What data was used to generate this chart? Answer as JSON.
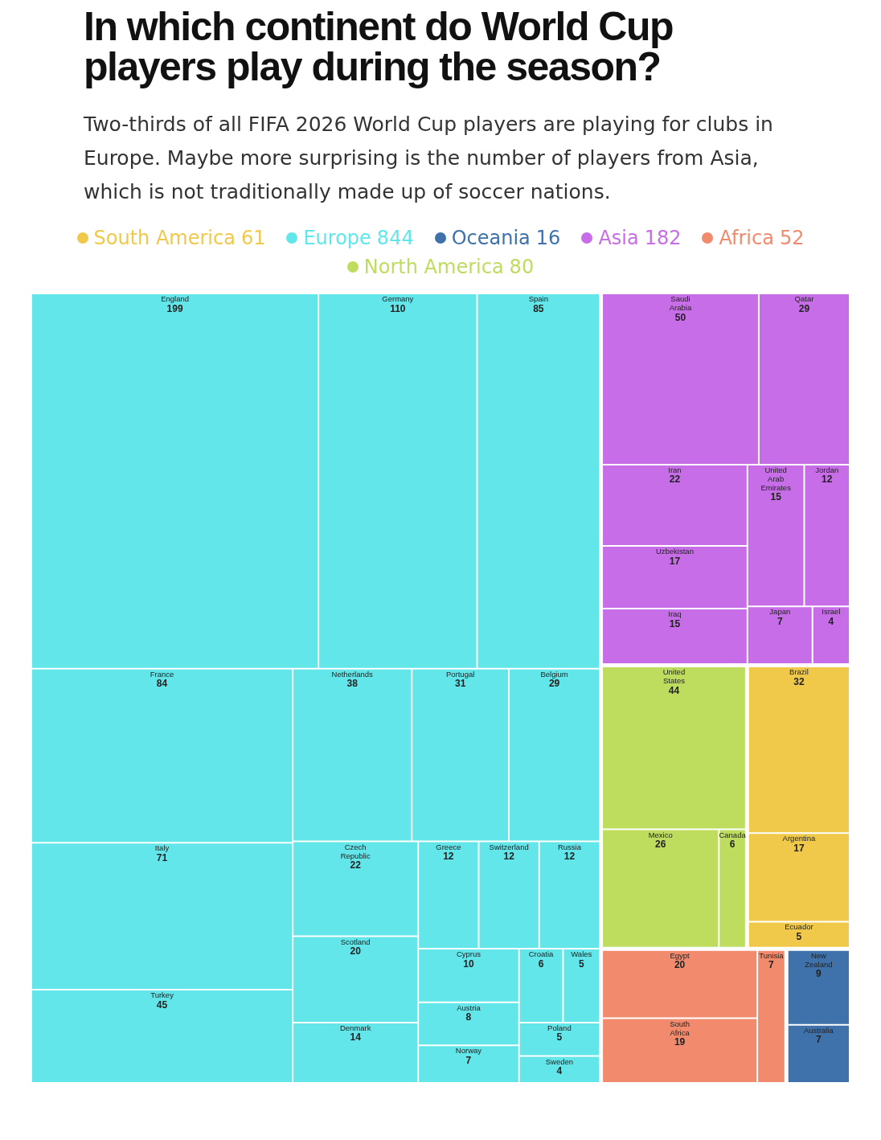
{
  "chart_data": {
    "type": "other",
    "title": "In which continent do World Cup players play during the season?",
    "subtitle": "Two-thirds of all FIFA 2026 World Cup players are playing for clubs in Europe. Maybe more surprising is the number of players from Asia, which is not traditionally made up of soccer nations.",
    "categories": [
      "Brazil",
      "Argentina",
      "Ecuador",
      "England",
      "Germany",
      "Spain",
      "France",
      "Italy",
      "Turkey",
      "Netherlands",
      "Portugal",
      "Belgium",
      "Czech Republic",
      "Scotland",
      "Denmark",
      "Russia",
      "Switzerland",
      "Greece",
      "Cyprus",
      "Austria",
      "Norway",
      "Croatia",
      "Poland",
      "Wales",
      "Sweden",
      "New Zealand",
      "Australia",
      "Saudi Arabia",
      "Qatar",
      "Iran",
      "Uzbekistan",
      "United Arab Emirates",
      "Iraq",
      "Jordan",
      "Japan",
      "Israel",
      "Egypt",
      "South Africa",
      "Tunisia",
      "United States",
      "Mexico",
      "Canada"
    ],
    "series": [
      {
        "name": "South America",
        "color": "#f0c94a",
        "values": [
          32,
          17,
          5,
          null,
          null,
          null,
          null,
          null,
          null,
          null,
          null,
          null,
          null,
          null,
          null,
          null,
          null,
          null,
          null,
          null,
          null,
          null,
          null,
          null,
          null,
          null,
          null,
          null,
          null,
          null,
          null,
          null,
          null,
          null,
          null,
          null,
          null,
          null,
          null,
          null,
          null,
          null
        ]
      },
      {
        "name": "Europe",
        "color": "#62e6ea",
        "values": [
          null,
          null,
          null,
          199,
          110,
          85,
          84,
          71,
          45,
          38,
          31,
          29,
          22,
          20,
          14,
          12,
          12,
          12,
          10,
          8,
          7,
          6,
          5,
          5,
          4,
          null,
          null,
          null,
          null,
          null,
          null,
          null,
          null,
          null,
          null,
          null,
          null,
          null,
          null,
          null,
          null,
          null
        ]
      },
      {
        "name": "Oceania",
        "color": "#3f72aa",
        "values": [
          null,
          null,
          null,
          null,
          null,
          null,
          null,
          null,
          null,
          null,
          null,
          null,
          null,
          null,
          null,
          null,
          null,
          null,
          null,
          null,
          null,
          null,
          null,
          null,
          null,
          9,
          7,
          null,
          null,
          null,
          null,
          null,
          null,
          null,
          null,
          null,
          null,
          null,
          null,
          null,
          null,
          null
        ]
      },
      {
        "name": "Asia",
        "color": "#c86de8",
        "values": [
          null,
          null,
          null,
          null,
          null,
          null,
          null,
          null,
          null,
          null,
          null,
          null,
          null,
          null,
          null,
          null,
          null,
          null,
          null,
          null,
          null,
          null,
          null,
          null,
          null,
          null,
          null,
          50,
          29,
          22,
          17,
          15,
          15,
          12,
          7,
          4,
          null,
          null,
          null,
          null,
          null,
          null
        ]
      },
      {
        "name": "Africa",
        "color": "#f28b6e",
        "values": [
          null,
          null,
          null,
          null,
          null,
          null,
          null,
          null,
          null,
          null,
          null,
          null,
          null,
          null,
          null,
          null,
          null,
          null,
          null,
          null,
          null,
          null,
          null,
          null,
          null,
          null,
          null,
          null,
          null,
          null,
          null,
          null,
          null,
          null,
          null,
          null,
          20,
          19,
          7,
          null,
          null,
          null
        ]
      },
      {
        "name": "North America",
        "color": "#bedd5f",
        "values": [
          null,
          null,
          null,
          null,
          null,
          null,
          null,
          null,
          null,
          null,
          null,
          null,
          null,
          null,
          null,
          null,
          null,
          null,
          null,
          null,
          null,
          null,
          null,
          null,
          null,
          null,
          null,
          null,
          null,
          null,
          null,
          null,
          null,
          null,
          null,
          null,
          null,
          null,
          null,
          44,
          26,
          6
        ]
      }
    ],
    "annotations": [
      "61",
      "844",
      "16",
      "182",
      "52",
      "80"
    ],
    "data_labels": true,
    "legend": "top"
  }
}
